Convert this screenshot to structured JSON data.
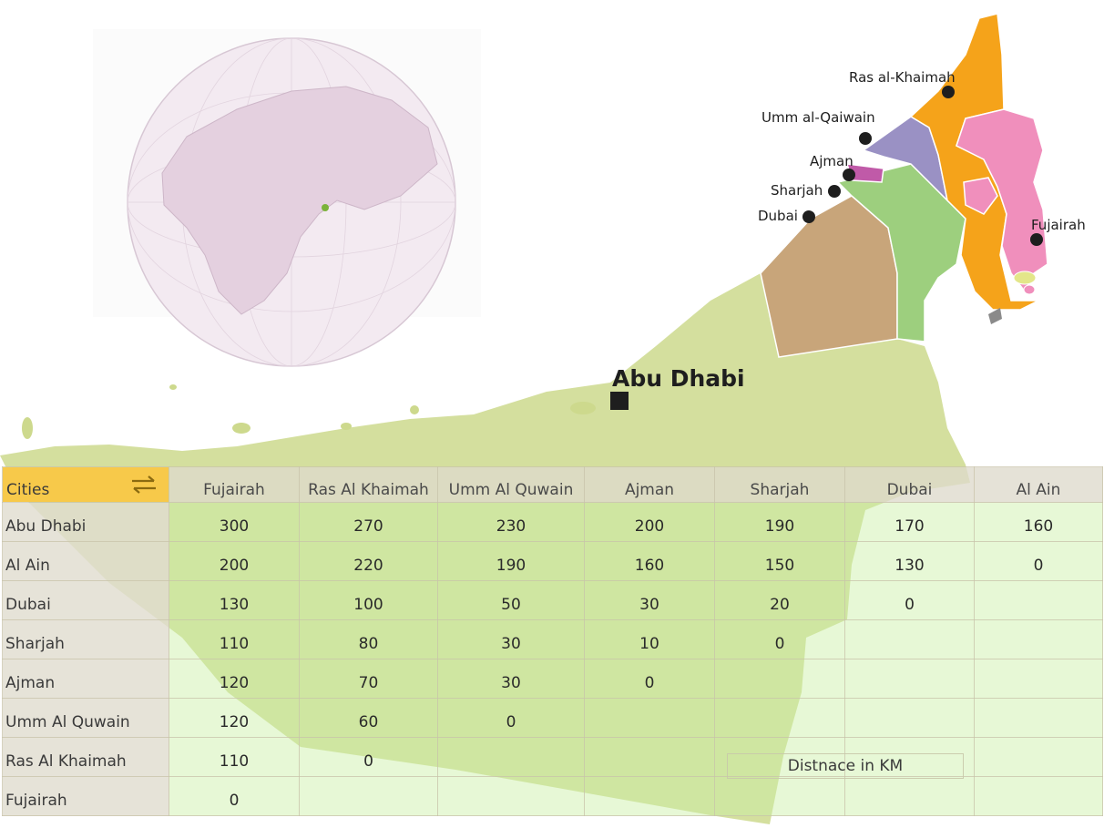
{
  "map": {
    "capital": "Abu Dhabi",
    "cities": [
      "Ras al-Khaimah",
      "Umm al-Qaiwain",
      "Ajman",
      "Sharjah",
      "Dubai",
      "Fujairah"
    ],
    "colors": {
      "abu_dhabi": "#cdd98d",
      "dubai": "#c8a57a",
      "sharjah": "#9dcf7e",
      "ajman": "#c05aa8",
      "umm_al_quwain": "#9a91c4",
      "ras_al_khaimah": "#f5a31a",
      "fujairah": "#f08fbc",
      "globe": "#ede0ea"
    }
  },
  "table": {
    "corner_label": "Cities",
    "columns": [
      "Fujairah",
      "Ras Al Khaimah",
      "Umm Al Quwain",
      "Ajman",
      "Sharjah",
      "Dubai",
      "Al Ain"
    ],
    "rows": [
      {
        "city": "Abu Dhabi",
        "values": [
          "300",
          "270",
          "230",
          "200",
          "190",
          "170",
          "160"
        ]
      },
      {
        "city": "Al Ain",
        "values": [
          "200",
          "220",
          "190",
          "160",
          "150",
          "130",
          "0"
        ]
      },
      {
        "city": "Dubai",
        "values": [
          "130",
          "100",
          "50",
          "30",
          "20",
          "0",
          ""
        ]
      },
      {
        "city": "Sharjah",
        "values": [
          "110",
          "80",
          "30",
          "10",
          "0",
          "",
          ""
        ]
      },
      {
        "city": "Ajman",
        "values": [
          "120",
          "70",
          "30",
          "0",
          "",
          "",
          ""
        ]
      },
      {
        "city": "Umm Al Quwain",
        "values": [
          "120",
          "60",
          "0",
          "",
          "",
          "",
          ""
        ]
      },
      {
        "city": "Ras Al Khaimah",
        "values": [
          "110",
          "0",
          "",
          "",
          "",
          "",
          ""
        ]
      },
      {
        "city": "Fujairah",
        "values": [
          "0",
          "",
          "",
          "",
          "",
          "",
          ""
        ]
      }
    ]
  },
  "legend": {
    "label": "Distnace in KM"
  }
}
